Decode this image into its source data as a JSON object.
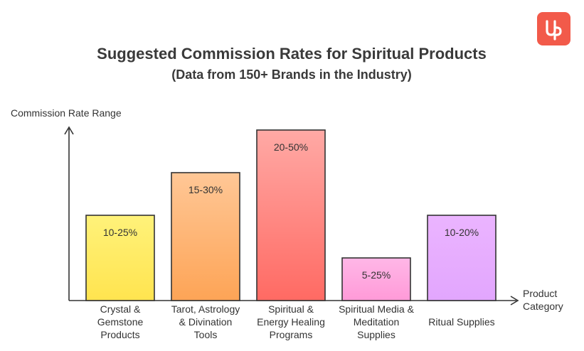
{
  "chart_data": {
    "type": "bar",
    "title": "Suggested Commission Rates for Spiritual Products",
    "subtitle": "(Data from 150+ Brands in the Industry)",
    "ylabel": "Commission Rate Range",
    "xlabel": [
      "Product",
      "Category"
    ],
    "ylim": [
      0,
      60
    ],
    "categories": [
      [
        "Crystal &",
        "Gemstone",
        "Products"
      ],
      [
        "Tarot, Astrology",
        "& Divination",
        "Tools"
      ],
      [
        "Spiritual &",
        "Energy Healing",
        "Programs"
      ],
      [
        "Spiritual Media &",
        "Meditation",
        "Supplies"
      ],
      [
        "Ritual Supplies"
      ]
    ],
    "ranges": [
      [
        10,
        25
      ],
      [
        15,
        30
      ],
      [
        20,
        50
      ],
      [
        5,
        25
      ],
      [
        10,
        20
      ]
    ],
    "labels": [
      "10-25%",
      "15-30%",
      "20-50%",
      "5-25%",
      "10-20%"
    ],
    "bar_levels": [
      2,
      3,
      4,
      1,
      2
    ],
    "colors": {
      "bar_gradients": [
        [
          "#fff27a",
          "#ffe44f"
        ],
        [
          "#ffc796",
          "#fda456"
        ],
        [
          "#ffa9a5",
          "#ff6a63"
        ],
        [
          "#ffb7e7",
          "#ff9ad8"
        ],
        [
          "#ebb4ff",
          "#e2a6fe"
        ]
      ],
      "axis": "#333333",
      "logo": "#f25a4a"
    },
    "logo_icon": "up-logo-icon"
  }
}
